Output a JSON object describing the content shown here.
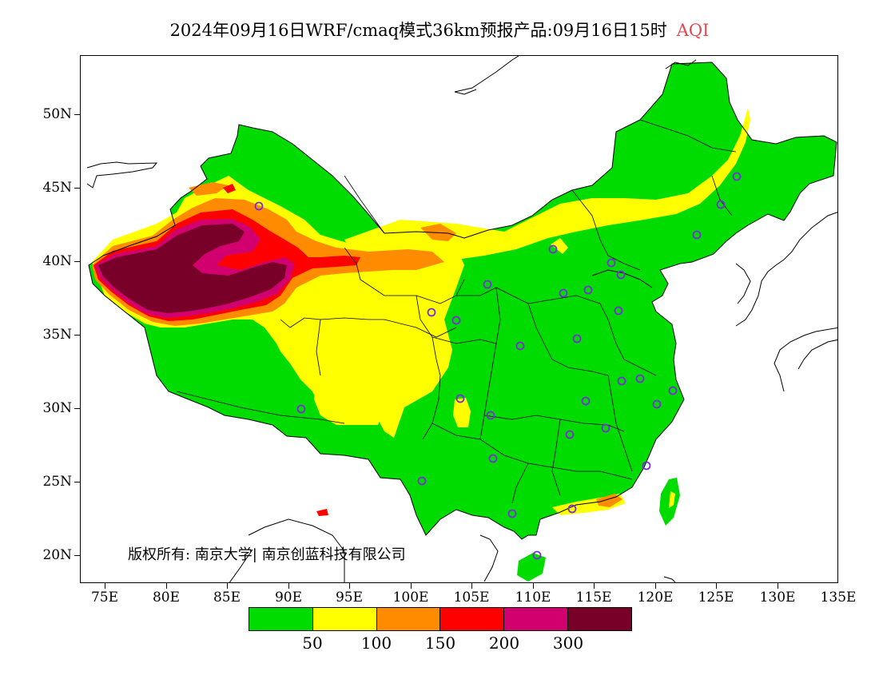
{
  "title": {
    "main": "2024年09月16日WRF/cmaq模式36km预报产品:09月16日15时",
    "variable": "AQI"
  },
  "axes": {
    "lat_labels": [
      "50N",
      "45N",
      "40N",
      "35N",
      "30N",
      "25N",
      "20N"
    ],
    "lon_labels": [
      "75E",
      "80E",
      "85E",
      "90E",
      "95E",
      "100E",
      "105E",
      "110E",
      "115E",
      "120E",
      "125E",
      "130E",
      "135E"
    ]
  },
  "copyright": "版权所有: 南京大学| 南京创蓝科技有限公司",
  "legend": {
    "colors": [
      "#00dc00",
      "#ffff00",
      "#ff8c00",
      "#ff0000",
      "#d2006e",
      "#780028"
    ],
    "tick_labels": [
      "50",
      "100",
      "150",
      "200",
      "300"
    ]
  },
  "colors": {
    "good": "#00dc00",
    "moderate": "#ffff00",
    "usg": "#ff8c00",
    "unhealthy": "#ff0000",
    "very_unhealthy": "#d2006e",
    "hazardous": "#780028",
    "city_marker": "#7a2fd6",
    "title_accent": "#e0484f"
  }
}
